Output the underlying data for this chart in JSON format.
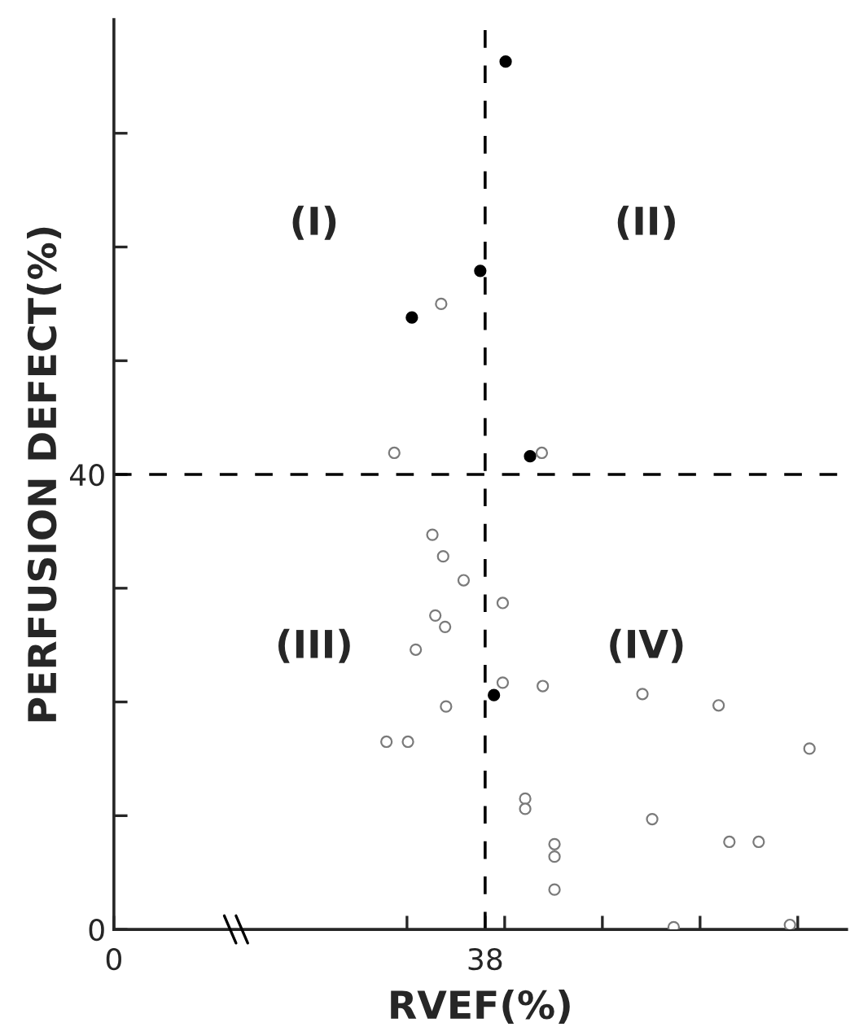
{
  "chart_data": {
    "type": "scatter",
    "xlabel": "RVEF(%)",
    "ylabel": "PERFUSION DEFECT(%)",
    "annotations": [
      "(I)",
      "(II)",
      "(III)",
      "(IV)"
    ],
    "marker": "circle",
    "series": [
      {
        "color": "#000000",
        "x": [
          40.1,
          37.5,
          30.5,
          42.6,
          38.9
        ],
        "values": [
          76.3,
          57.9,
          53.8,
          41.6,
          20.6
        ]
      },
      {
        "color": "#7a7a7a",
        "x": [
          33.5,
          28.7,
          43.8,
          32.6,
          33.7,
          35.8,
          39.8,
          32.9,
          33.9,
          30.9,
          39.8,
          43.9,
          34.0,
          27.9,
          30.1,
          54.1,
          61.9,
          71.2,
          42.1,
          42.1,
          55.1,
          63.0,
          66.0,
          45.1,
          45.1,
          45.1,
          57.3,
          69.2
        ],
        "values": [
          55.0,
          41.9,
          41.9,
          34.7,
          32.8,
          30.7,
          28.7,
          27.6,
          26.6,
          24.6,
          21.7,
          21.4,
          19.6,
          16.5,
          16.5,
          20.7,
          19.7,
          15.9,
          11.5,
          10.6,
          9.7,
          7.7,
          7.7,
          7.5,
          6.4,
          3.5,
          0.2,
          0.4
        ]
      }
    ],
    "ref_lines": [
      {
        "axis": "x",
        "value": 38,
        "line_style": "dashed",
        "color": "#000000"
      },
      {
        "axis": "y",
        "value": 40,
        "line_style": "dashed",
        "color": "#000000"
      }
    ],
    "xlim": [
      0,
      75
    ],
    "ylim": [
      0,
      80
    ],
    "xticks": [
      0,
      {
        "value": 30,
        "label": null
      },
      38,
      {
        "value": 40,
        "label": null
      },
      {
        "value": 50,
        "label": null
      },
      {
        "value": 60,
        "label": null
      },
      {
        "value": 70,
        "label": null
      }
    ],
    "yticks": [
      0,
      {
        "value": 10,
        "label": null
      },
      {
        "value": 20,
        "label": null
      },
      {
        "value": 30,
        "label": null
      },
      40,
      {
        "value": 50,
        "label": null
      },
      {
        "value": 60,
        "label": null
      },
      {
        "value": 70,
        "label": null
      }
    ],
    "grid": false,
    "legend": false
  }
}
